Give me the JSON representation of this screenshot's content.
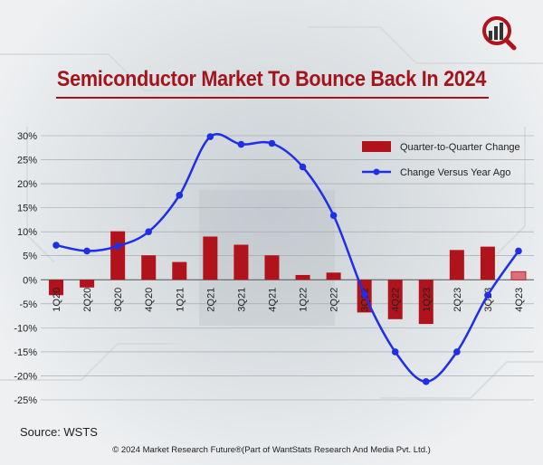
{
  "header": {
    "title": "Semiconductor Market To Bounce Back In 2024"
  },
  "footer": {
    "source": "Source: WSTS",
    "copyright": "© 2024 Market Research Future®(Part of WantStats Research And Media Pvt. Ltd.)"
  },
  "colors": {
    "accent": "#a3141c",
    "bar": "#b0131b",
    "bar_projected": "#d9707a",
    "line": "#1f2fe8"
  },
  "chart_data": {
    "type": "bar",
    "title": "Semiconductor Market To Bounce Back In 2024",
    "categories": [
      "1Q20",
      "2Q20",
      "3Q20",
      "4Q20",
      "1Q21",
      "2Q21",
      "3Q21",
      "4Q21",
      "1Q22",
      "2Q22",
      "3Q22",
      "4Q22",
      "1Q23",
      "2Q23",
      "3Q23",
      "4Q23"
    ],
    "tick_labels": [
      "1Q20",
      "2Q20",
      "3Q20",
      "4Q20",
      "1Q21",
      "2Q21",
      "3Q21",
      "4Q21",
      "1Q22",
      "2Q22",
      "3Q22",
      "4Q22",
      "1Q23",
      "2Q23",
      "3Q23",
      "4Q23"
    ],
    "ylim": [
      -25,
      30
    ],
    "yticks": [
      "30%",
      "25%",
      "20%",
      "15%",
      "10%",
      "5%",
      "0%",
      "-5%",
      "-10%",
      "-15%",
      "-20%",
      "-25%"
    ],
    "ytick_values": [
      30,
      25,
      20,
      15,
      10,
      5,
      0,
      -5,
      -10,
      -15,
      -20,
      -25
    ],
    "grid": true,
    "legend_position": "top-right",
    "series": [
      {
        "name": "Quarter-to-Quarter Change",
        "type": "bar",
        "values": [
          -3.2,
          -1.6,
          10.1,
          5.1,
          3.7,
          9.0,
          7.3,
          5.1,
          1.0,
          1.5,
          -6.8,
          -8.2,
          -9.2,
          6.2,
          6.9,
          1.7
        ],
        "projected_from_index": 15
      },
      {
        "name": "Change Versus Year Ago",
        "type": "line",
        "values": [
          7.2,
          6.0,
          7.0,
          10.0,
          17.6,
          29.8,
          28.2,
          28.4,
          23.5,
          13.4,
          -3.0,
          -15.0,
          -21.2,
          -15.0,
          -3.2,
          6.0
        ]
      }
    ]
  }
}
